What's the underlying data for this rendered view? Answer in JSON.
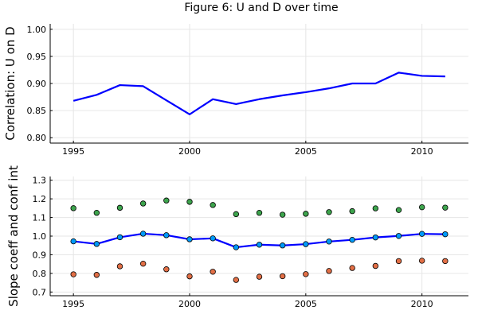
{
  "figure": {
    "title": "Figure 6: U and D over time"
  },
  "chart_data": [
    {
      "type": "line",
      "title": "Figure 6: U and D over time",
      "xlabel": "",
      "ylabel": "Correlation: U on D",
      "xlim": [
        1994,
        2012
      ],
      "ylim": [
        0.79,
        1.01
      ],
      "x_ticks": [
        1995,
        2000,
        2005,
        2010
      ],
      "y_ticks": [
        0.8,
        0.85,
        0.9,
        0.95,
        1.0
      ],
      "y_tick_labels": [
        "0.80",
        "0.85",
        "0.90",
        "0.95",
        "1.00"
      ],
      "grid": true,
      "legend": "none",
      "series": [
        {
          "color": "#0000ff",
          "x": [
            1995,
            1996,
            1997,
            1998,
            1999,
            2000,
            2001,
            2002,
            2003,
            2004,
            2005,
            2006,
            2007,
            2008,
            2009,
            2010,
            2011
          ],
          "y": [
            0.868,
            0.879,
            0.897,
            0.895,
            0.869,
            0.843,
            0.871,
            0.862,
            0.871,
            0.878,
            0.884,
            0.891,
            0.9,
            0.9,
            0.92,
            0.914,
            0.913
          ]
        }
      ]
    },
    {
      "type": "line",
      "title": "",
      "xlabel": "",
      "ylabel": "Slope coeff and conf int",
      "xlim": [
        1994,
        2012
      ],
      "ylim": [
        0.68,
        1.32
      ],
      "x_ticks": [
        1995,
        2000,
        2005,
        2010
      ],
      "y_ticks": [
        0.7,
        0.8,
        0.9,
        1.0,
        1.1,
        1.2,
        1.3
      ],
      "y_tick_labels": [
        "0.7",
        "0.8",
        "0.9",
        "1.0",
        "1.1",
        "1.2",
        "1.3"
      ],
      "grid": true,
      "legend": "none",
      "series": [
        {
          "color": "#0000ff",
          "marker_color": "#009af9",
          "line": true,
          "markers": true,
          "x": [
            1995,
            1996,
            1997,
            1998,
            1999,
            2000,
            2001,
            2002,
            2003,
            2004,
            2005,
            2006,
            2007,
            2008,
            2009,
            2010,
            2011
          ],
          "y": [
            0.972,
            0.958,
            0.994,
            1.013,
            1.005,
            0.983,
            0.988,
            0.94,
            0.954,
            0.95,
            0.957,
            0.971,
            0.98,
            0.993,
            1.001,
            1.012,
            1.01
          ]
        },
        {
          "color": "#3da44d",
          "line": false,
          "markers": true,
          "x": [
            1995,
            1996,
            1997,
            1998,
            1999,
            2000,
            2001,
            2002,
            2003,
            2004,
            2005,
            2006,
            2007,
            2008,
            2009,
            2010,
            2011
          ],
          "y": [
            1.15,
            1.125,
            1.152,
            1.175,
            1.191,
            1.184,
            1.167,
            1.118,
            1.125,
            1.115,
            1.12,
            1.129,
            1.134,
            1.149,
            1.14,
            1.155,
            1.153
          ]
        },
        {
          "color": "#e26f46",
          "line": false,
          "markers": true,
          "x": [
            1995,
            1996,
            1997,
            1998,
            1999,
            2000,
            2001,
            2002,
            2003,
            2004,
            2005,
            2006,
            2007,
            2008,
            2009,
            2010,
            2011
          ],
          "y": [
            0.795,
            0.792,
            0.838,
            0.852,
            0.822,
            0.784,
            0.809,
            0.765,
            0.782,
            0.785,
            0.796,
            0.813,
            0.829,
            0.84,
            0.866,
            0.868,
            0.866
          ]
        }
      ]
    }
  ]
}
